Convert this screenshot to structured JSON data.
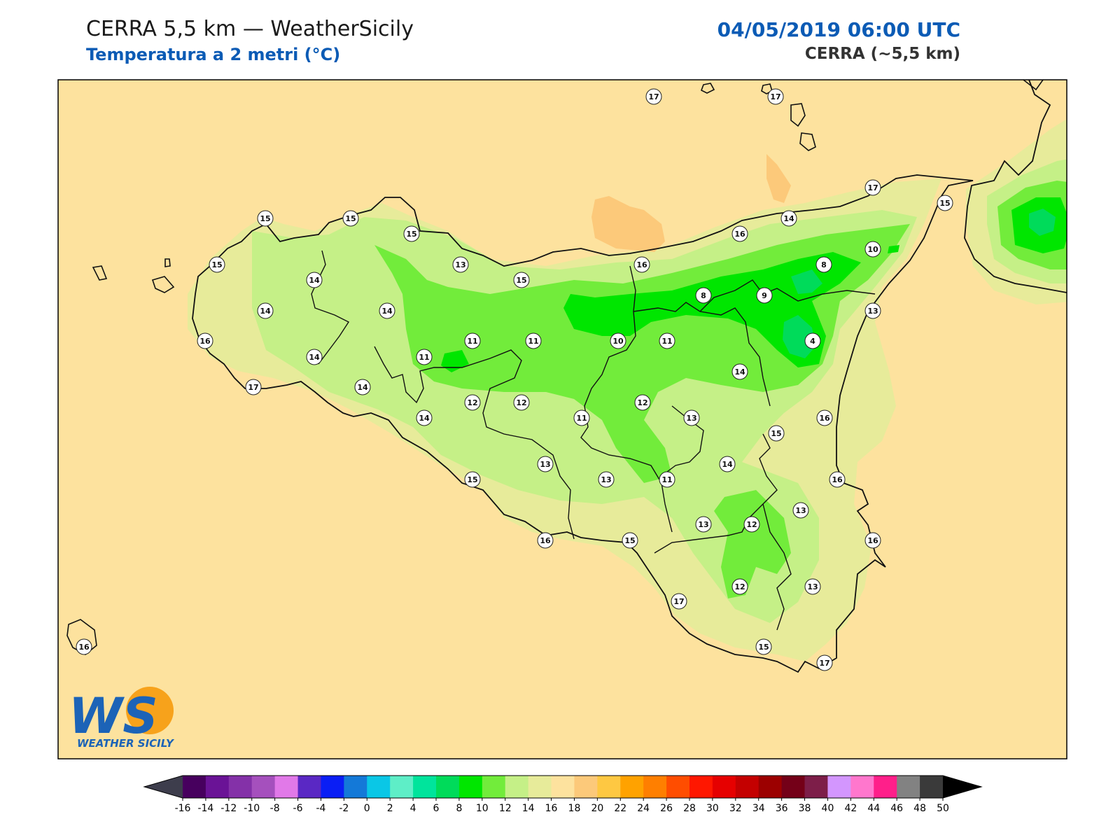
{
  "header": {
    "title": "CERRA 5,5 km — WeatherSicily",
    "subtitle": "Temperatura a 2 metri (°C)",
    "datetime": "04/05/2019 06:00 UTC",
    "model": "CERRA (~5,5 km)"
  },
  "logo": {
    "monogram": "WS",
    "text": "WEATHER SICILY"
  },
  "map": {
    "base_color": "#fde29e",
    "coast_color": "#111111",
    "stations": [
      {
        "v": "17"
      },
      {
        "v": "17"
      },
      {
        "v": "17"
      },
      {
        "v": "15"
      },
      {
        "v": "15"
      },
      {
        "v": "15"
      },
      {
        "v": "15"
      },
      {
        "v": "14"
      },
      {
        "v": "16"
      },
      {
        "v": "10"
      },
      {
        "v": "13"
      },
      {
        "v": "15"
      },
      {
        "v": "16"
      },
      {
        "v": "8"
      },
      {
        "v": "15"
      },
      {
        "v": "14"
      },
      {
        "v": "14"
      },
      {
        "v": "14"
      },
      {
        "v": "8"
      },
      {
        "v": "9"
      },
      {
        "v": "13"
      },
      {
        "v": "16"
      },
      {
        "v": "11"
      },
      {
        "v": "11"
      },
      {
        "v": "11"
      },
      {
        "v": "10"
      },
      {
        "v": "11"
      },
      {
        "v": "4"
      },
      {
        "v": "14"
      },
      {
        "v": "14"
      },
      {
        "v": "17"
      },
      {
        "v": "14"
      },
      {
        "v": "14"
      },
      {
        "v": "12"
      },
      {
        "v": "12"
      },
      {
        "v": "12"
      },
      {
        "v": "11"
      },
      {
        "v": "13"
      },
      {
        "v": "16"
      },
      {
        "v": "15"
      },
      {
        "v": "14"
      },
      {
        "v": "13"
      },
      {
        "v": "15"
      },
      {
        "v": "13"
      },
      {
        "v": "11"
      },
      {
        "v": "16"
      },
      {
        "v": "13"
      },
      {
        "v": "12"
      },
      {
        "v": "13"
      },
      {
        "v": "16"
      },
      {
        "v": "16"
      },
      {
        "v": "15"
      },
      {
        "v": "17"
      },
      {
        "v": "12"
      },
      {
        "v": "13"
      },
      {
        "v": "15"
      },
      {
        "v": "17"
      },
      {
        "v": "16"
      }
    ]
  },
  "colorbar": {
    "labels": [
      "-16",
      "-14",
      "-12",
      "-10",
      "-8",
      "-6",
      "-4",
      "-2",
      "0",
      "2",
      "4",
      "6",
      "8",
      "10",
      "12",
      "14",
      "16",
      "18",
      "20",
      "22",
      "24",
      "26",
      "28",
      "30",
      "32",
      "34",
      "36",
      "38",
      "40",
      "42",
      "44",
      "46",
      "48",
      "50"
    ],
    "colors": [
      "#47005e",
      "#6a1396",
      "#8431a8",
      "#a550bd",
      "#e179e8",
      "#5a28c4",
      "#0a1ef5",
      "#1479d8",
      "#0ac7e6",
      "#5eeec7",
      "#00e49c",
      "#00db5a",
      "#00e600",
      "#72ec3b",
      "#c5f087",
      "#e7eb9a",
      "#fde29e",
      "#fcc97a",
      "#fec842",
      "#ffa200",
      "#ff7f00",
      "#ff4d00",
      "#ff1700",
      "#e60000",
      "#c40000",
      "#9c0000",
      "#740018",
      "#7d1e49",
      "#d396fe",
      "#ff77cd",
      "#ff1f8a",
      "#828282",
      "#3a3a3a"
    ],
    "under_color": "#3d3d4c",
    "over_color": "#000000"
  },
  "zones": {
    "t16": "#fde29e",
    "t14": "#e7eb9a",
    "t12": "#c5f087",
    "t10": "#72ec3b",
    "t8": "#00e600",
    "t6": "#00db5a",
    "t18": "#fcc97a"
  }
}
